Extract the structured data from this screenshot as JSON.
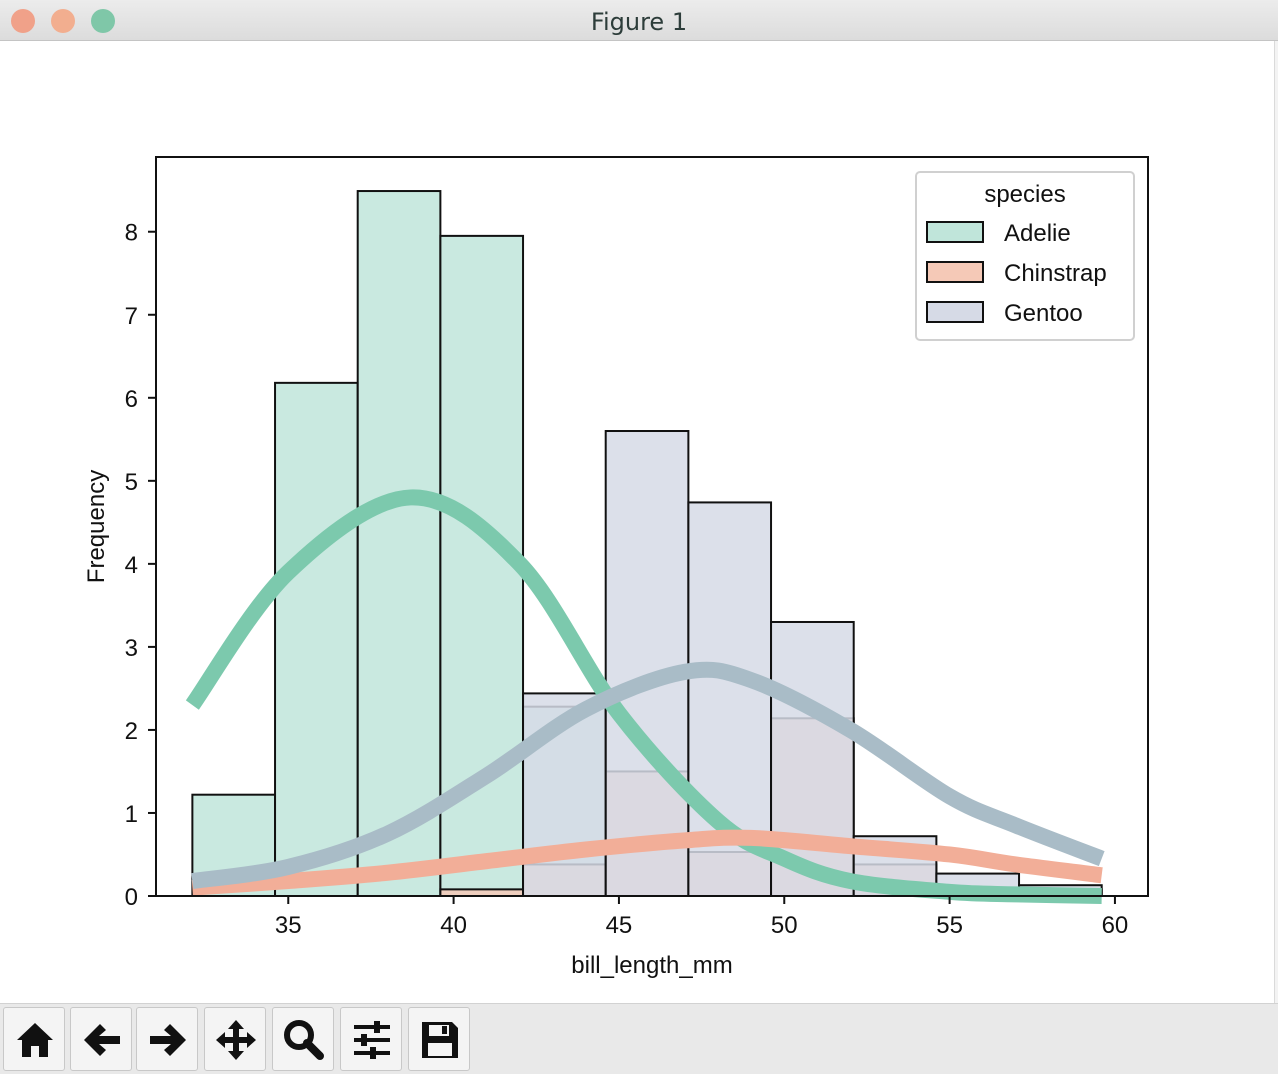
{
  "window": {
    "title": "Figure 1"
  },
  "toolbar": {
    "buttons": [
      {
        "name": "home-icon"
      },
      {
        "name": "back-arrow-icon"
      },
      {
        "name": "forward-arrow-icon"
      },
      {
        "name": "pan-move-icon"
      },
      {
        "name": "zoom-magnifier-icon"
      },
      {
        "name": "configure-subplots-icon"
      },
      {
        "name": "save-disk-icon"
      }
    ]
  },
  "chart_data": {
    "type": "bar",
    "title": "",
    "xlabel": "bill_length_mm",
    "ylabel": "Frequency",
    "xlim": [
      31,
      61
    ],
    "ylim": [
      0,
      8.9
    ],
    "xticks": [
      35,
      40,
      45,
      50,
      55,
      60
    ],
    "yticks": [
      0,
      1,
      2,
      3,
      4,
      5,
      6,
      7,
      8
    ],
    "bin_edges": [
      32.1,
      34.6,
      37.1,
      39.6,
      42.1,
      44.6,
      47.1,
      49.6,
      52.1,
      54.6,
      57.1,
      59.6
    ],
    "legend": {
      "title": "species",
      "position": "top-right"
    },
    "series": [
      {
        "name": "Adelie",
        "color": "#c0e5da",
        "line_color": "#7cc9ad",
        "values": [
          1.22,
          6.18,
          8.49,
          7.95,
          2.28,
          0.0,
          0.0,
          0.0,
          0.0,
          0.0,
          0.0
        ],
        "kde": [
          [
            32.1,
            2.3
          ],
          [
            35,
            3.9
          ],
          [
            38.7,
            4.8
          ],
          [
            42,
            4.0
          ],
          [
            45,
            2.2
          ],
          [
            48,
            0.9
          ],
          [
            50,
            0.45
          ],
          [
            52,
            0.18
          ],
          [
            55,
            0.05
          ],
          [
            57,
            0.02
          ],
          [
            59.6,
            0.0
          ]
        ]
      },
      {
        "name": "Chinstrap",
        "color": "#f5c9b7",
        "line_color": "#f2ae98",
        "values": [
          0.0,
          0.0,
          0.0,
          0.08,
          0.38,
          1.5,
          0.53,
          2.14,
          0.38,
          0.08,
          0.08
        ],
        "kde": [
          [
            32.1,
            0.1
          ],
          [
            35,
            0.18
          ],
          [
            38,
            0.28
          ],
          [
            41,
            0.42
          ],
          [
            44,
            0.56
          ],
          [
            47,
            0.67
          ],
          [
            49,
            0.7
          ],
          [
            52,
            0.6
          ],
          [
            55,
            0.5
          ],
          [
            57,
            0.38
          ],
          [
            59.6,
            0.25
          ]
        ]
      },
      {
        "name": "Gentoo",
        "color": "#d6dae6",
        "line_color": "#a9bcc7",
        "values": [
          0.0,
          0.0,
          0.0,
          0.0,
          2.44,
          5.6,
          4.74,
          3.3,
          0.72,
          0.27,
          0.13
        ],
        "kde": [
          [
            32.1,
            0.18
          ],
          [
            35,
            0.35
          ],
          [
            38,
            0.75
          ],
          [
            41,
            1.45
          ],
          [
            44,
            2.25
          ],
          [
            47,
            2.7
          ],
          [
            49,
            2.6
          ],
          [
            52,
            2.0
          ],
          [
            55,
            1.2
          ],
          [
            57,
            0.85
          ],
          [
            59.6,
            0.45
          ]
        ]
      }
    ]
  }
}
